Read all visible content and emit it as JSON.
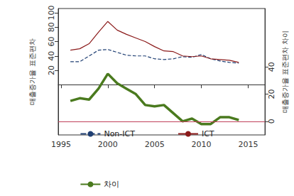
{
  "chart_data": {
    "type": "line",
    "x": [
      1996,
      1997,
      1998,
      1999,
      2000,
      2001,
      2002,
      2003,
      2004,
      2005,
      2006,
      2007,
      2008,
      2009,
      2010,
      2011,
      2012,
      2013,
      2014
    ],
    "xlim": [
      1994.7,
      2016.8
    ],
    "xticks": [
      1995,
      2000,
      2005,
      2010,
      2015
    ],
    "y_label": "매출증가율 표준편차",
    "y2_label": "매출증가율 표준편차 차이",
    "ylim": [
      -70,
      106
    ],
    "yticks": [
      20,
      40,
      60,
      80,
      100
    ],
    "y2lim": [
      -10,
      83
    ],
    "y2ticks": [
      0,
      20,
      40
    ],
    "grid": false,
    "legend": "bottom",
    "hline": {
      "value": 0,
      "axis": "y2",
      "color": "#c0405a"
    },
    "series": [
      {
        "name": "Non-ICT",
        "color": "#1f3f73",
        "line_style": "dashed",
        "marker": "none",
        "values": [
          32,
          32,
          40,
          48,
          49,
          45,
          41,
          40,
          40,
          36,
          35,
          36,
          39,
          38,
          42,
          36,
          33,
          31,
          30
        ]
      },
      {
        "name": "ICT",
        "color": "#8b1a1a",
        "line_style": "solid",
        "marker": "none",
        "values": [
          48,
          50,
          57,
          73,
          88,
          76,
          70,
          65,
          60,
          53,
          47,
          46,
          40,
          39,
          40,
          36,
          35,
          34,
          31
        ]
      },
      {
        "name": "차이",
        "color": "#4a7a1e",
        "line_style": "bold",
        "marker": "none",
        "axis": "y2",
        "values": [
          15,
          17,
          16,
          24,
          35,
          28,
          24,
          20,
          12,
          11,
          12,
          6,
          0,
          2,
          -2,
          -2,
          3,
          3,
          1
        ]
      }
    ]
  }
}
